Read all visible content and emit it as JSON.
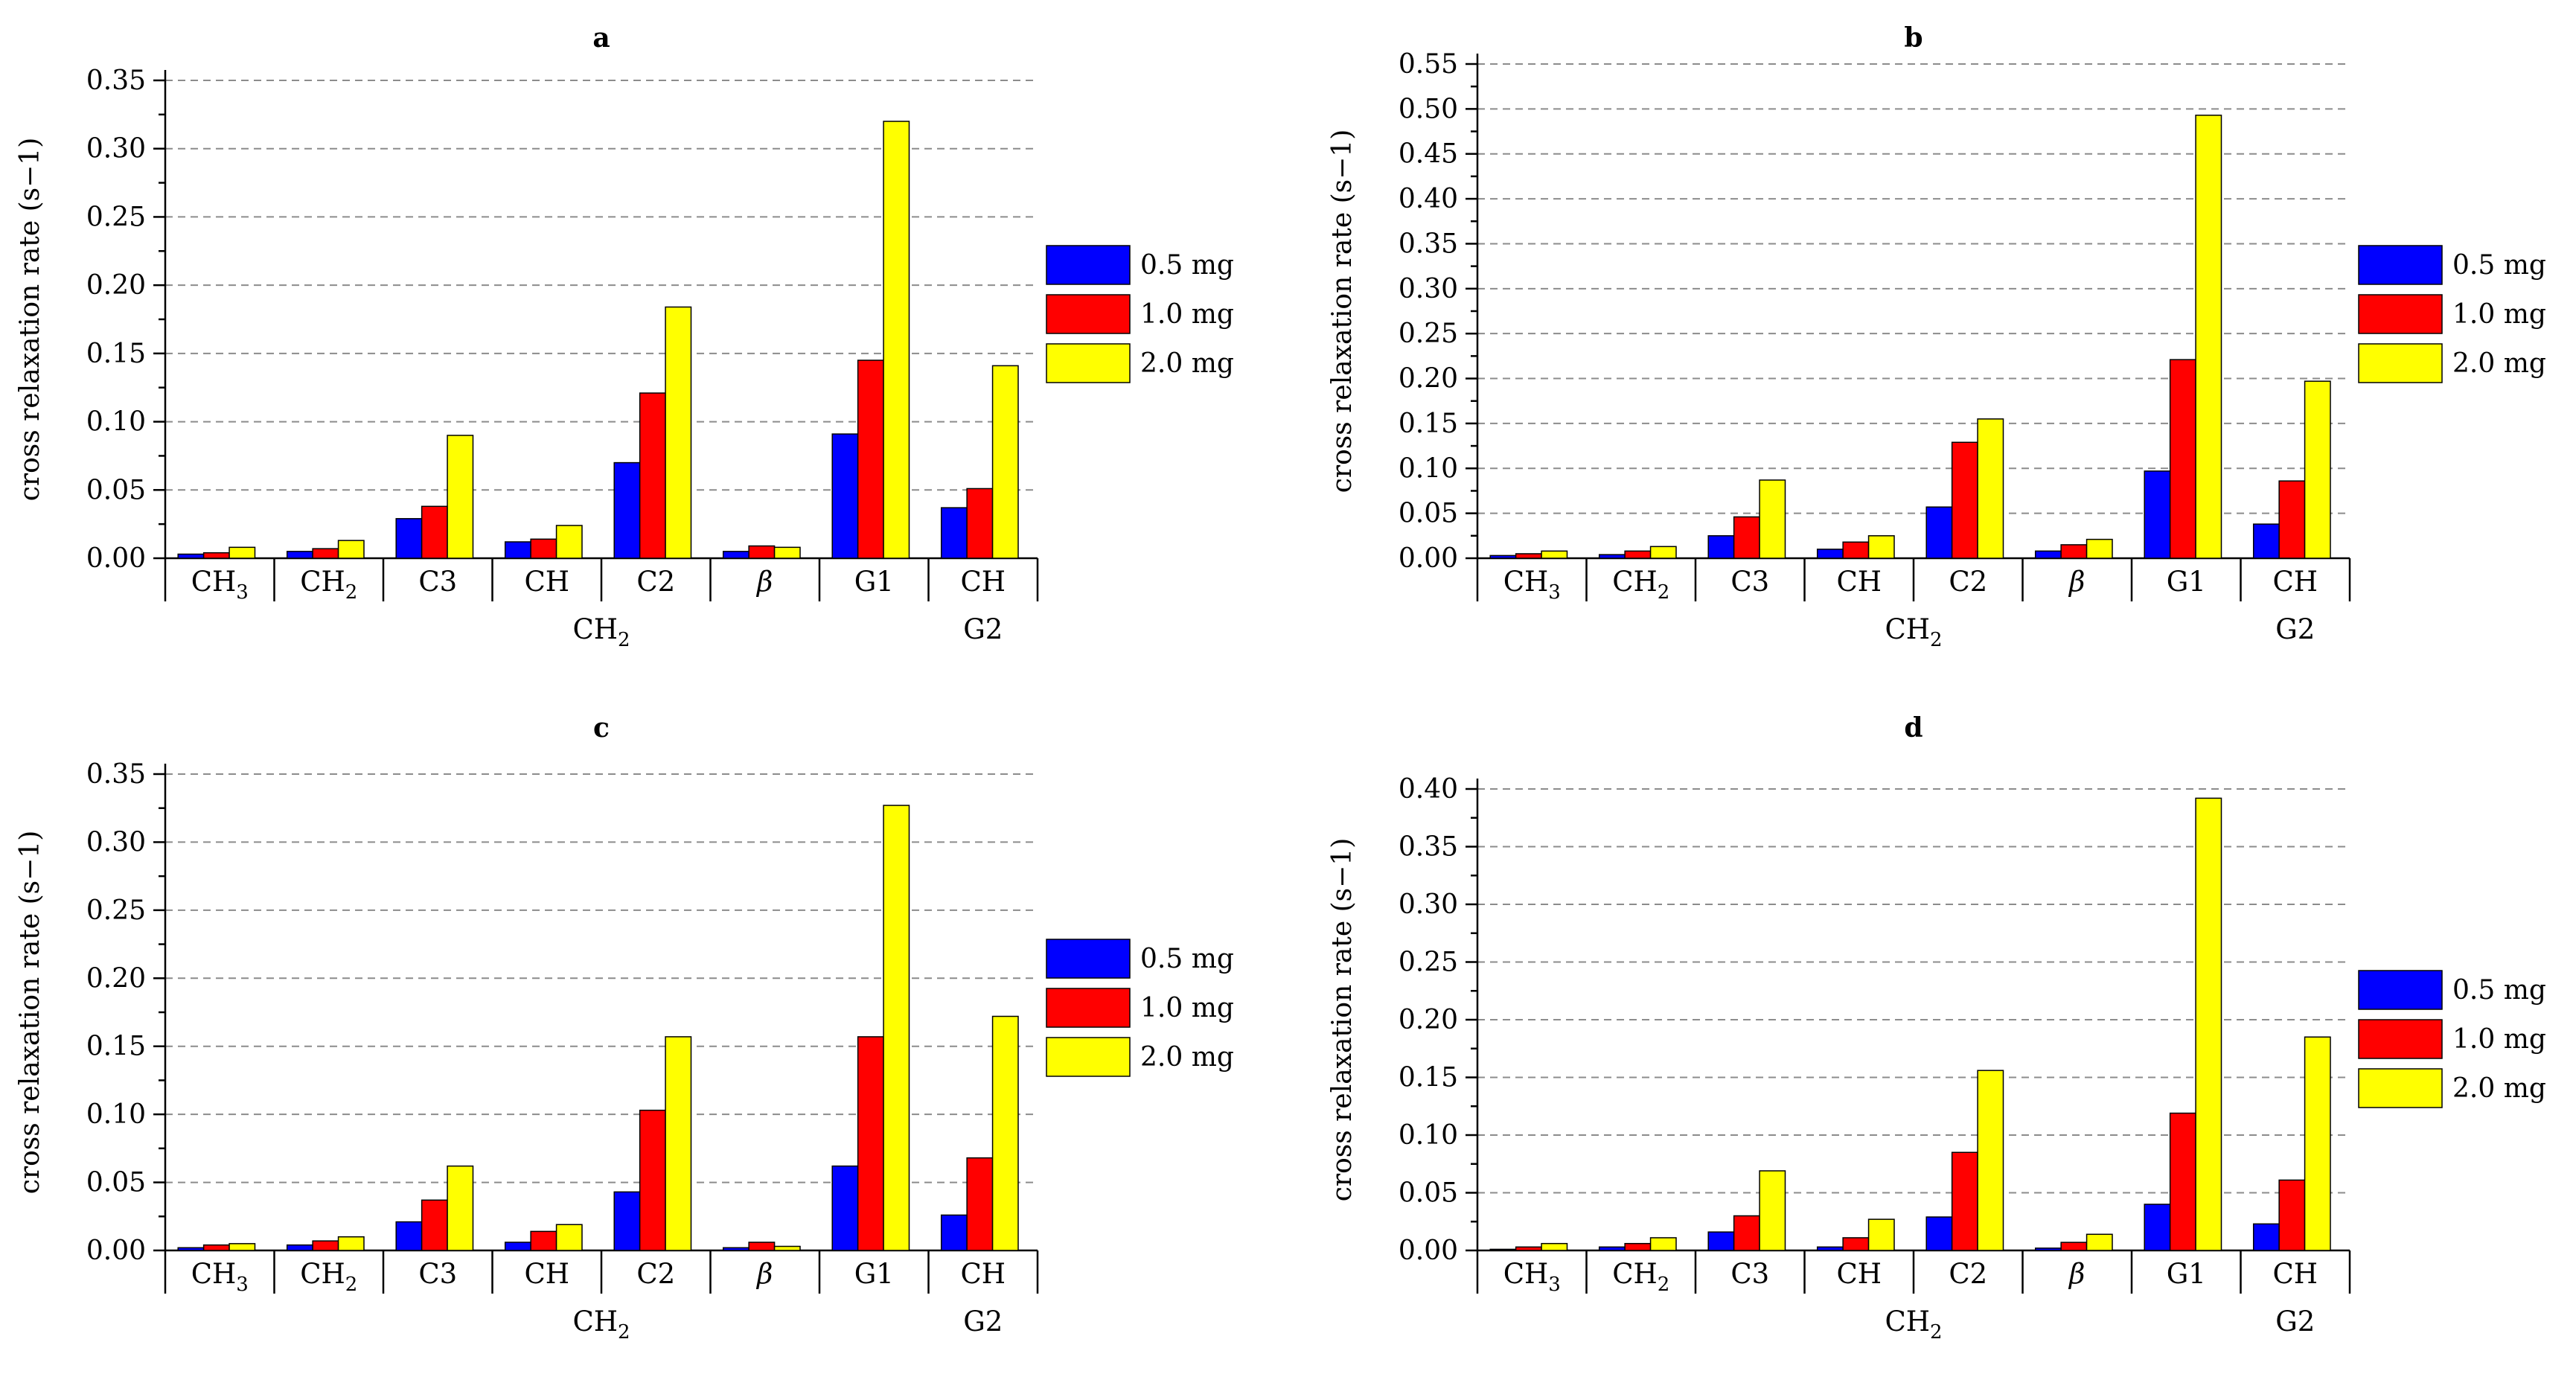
{
  "colors": {
    "s0": "#0000ff",
    "s1": "#ff0000",
    "s2": "#ffff00"
  },
  "chart_data": [
    {
      "type": "bar",
      "panel": "a",
      "ylabel": "cross relaxation rate (s−1)",
      "ylim": [
        0,
        0.35
      ],
      "yticks": [
        "0.00",
        "0.05",
        "0.10",
        "0.15",
        "0.20",
        "0.25",
        "0.30",
        "0.35"
      ],
      "categories": [
        "CH3",
        "CH2",
        "C3",
        "CH",
        "C2",
        "β",
        "G1",
        "CH"
      ],
      "group_labels": [
        "CH2",
        "G2"
      ],
      "grid": true,
      "legend": "right",
      "series": [
        {
          "name": "0.5 mg",
          "values": [
            0.003,
            0.005,
            0.029,
            0.012,
            0.07,
            0.005,
            0.091,
            0.037
          ]
        },
        {
          "name": "1.0 mg",
          "values": [
            0.004,
            0.007,
            0.038,
            0.014,
            0.121,
            0.009,
            0.145,
            0.051
          ]
        },
        {
          "name": "2.0 mg",
          "values": [
            0.008,
            0.013,
            0.09,
            0.024,
            0.184,
            0.008,
            0.32,
            0.141
          ]
        }
      ]
    },
    {
      "type": "bar",
      "panel": "b",
      "ylabel": "cross relaxation rate (s−1)",
      "ylim": [
        0,
        0.55
      ],
      "yticks": [
        "0.00",
        "0.05",
        "0.10",
        "0.15",
        "0.20",
        "0.25",
        "0.30",
        "0.35",
        "0.40",
        "0.45",
        "0.50",
        "0.55"
      ],
      "categories": [
        "CH3",
        "CH2",
        "C3",
        "CH",
        "C2",
        "β",
        "G1",
        "CH"
      ],
      "group_labels": [
        "CH2",
        "G2"
      ],
      "grid": true,
      "legend": "right",
      "series": [
        {
          "name": "0.5 mg",
          "values": [
            0.003,
            0.004,
            0.025,
            0.01,
            0.057,
            0.008,
            0.097,
            0.038
          ]
        },
        {
          "name": "1.0 mg",
          "values": [
            0.005,
            0.008,
            0.046,
            0.018,
            0.129,
            0.015,
            0.221,
            0.086
          ]
        },
        {
          "name": "2.0 mg",
          "values": [
            0.008,
            0.013,
            0.087,
            0.025,
            0.155,
            0.021,
            0.493,
            0.197
          ]
        }
      ]
    },
    {
      "type": "bar",
      "panel": "c",
      "ylabel": "cross relaxation rate (s−1)",
      "ylim": [
        0,
        0.35
      ],
      "yticks": [
        "0.00",
        "0.05",
        "0.10",
        "0.15",
        "0.20",
        "0.25",
        "0.30",
        "0.35"
      ],
      "categories": [
        "CH3",
        "CH2",
        "C3",
        "CH",
        "C2",
        "β",
        "G1",
        "CH"
      ],
      "group_labels": [
        "CH2",
        "G2"
      ],
      "grid": true,
      "legend": "right",
      "series": [
        {
          "name": "0.5 mg",
          "values": [
            0.002,
            0.004,
            0.021,
            0.006,
            0.043,
            0.002,
            0.062,
            0.026
          ]
        },
        {
          "name": "1.0 mg",
          "values": [
            0.004,
            0.007,
            0.037,
            0.014,
            0.103,
            0.006,
            0.157,
            0.068
          ]
        },
        {
          "name": "2.0 mg",
          "values": [
            0.005,
            0.01,
            0.062,
            0.019,
            0.157,
            0.003,
            0.327,
            0.172
          ]
        }
      ]
    },
    {
      "type": "bar",
      "panel": "d",
      "ylabel": "cross relaxation rate (s−1)",
      "ylim": [
        0,
        0.4
      ],
      "yticks": [
        "0.00",
        "0.05",
        "0.10",
        "0.15",
        "0.20",
        "0.25",
        "0.30",
        "0.35",
        "0.40"
      ],
      "categories": [
        "CH3",
        "CH2",
        "C3",
        "CH",
        "C2",
        "β",
        "G1",
        "CH"
      ],
      "group_labels": [
        "CH2",
        "G2"
      ],
      "grid": true,
      "legend": "right",
      "series": [
        {
          "name": "0.5 mg",
          "values": [
            0.001,
            0.003,
            0.016,
            0.003,
            0.029,
            0.002,
            0.04,
            0.023
          ]
        },
        {
          "name": "1.0 mg",
          "values": [
            0.003,
            0.006,
            0.03,
            0.011,
            0.085,
            0.007,
            0.119,
            0.061
          ]
        },
        {
          "name": "2.0 mg",
          "values": [
            0.006,
            0.011,
            0.069,
            0.027,
            0.156,
            0.014,
            0.392,
            0.185
          ]
        }
      ]
    }
  ]
}
